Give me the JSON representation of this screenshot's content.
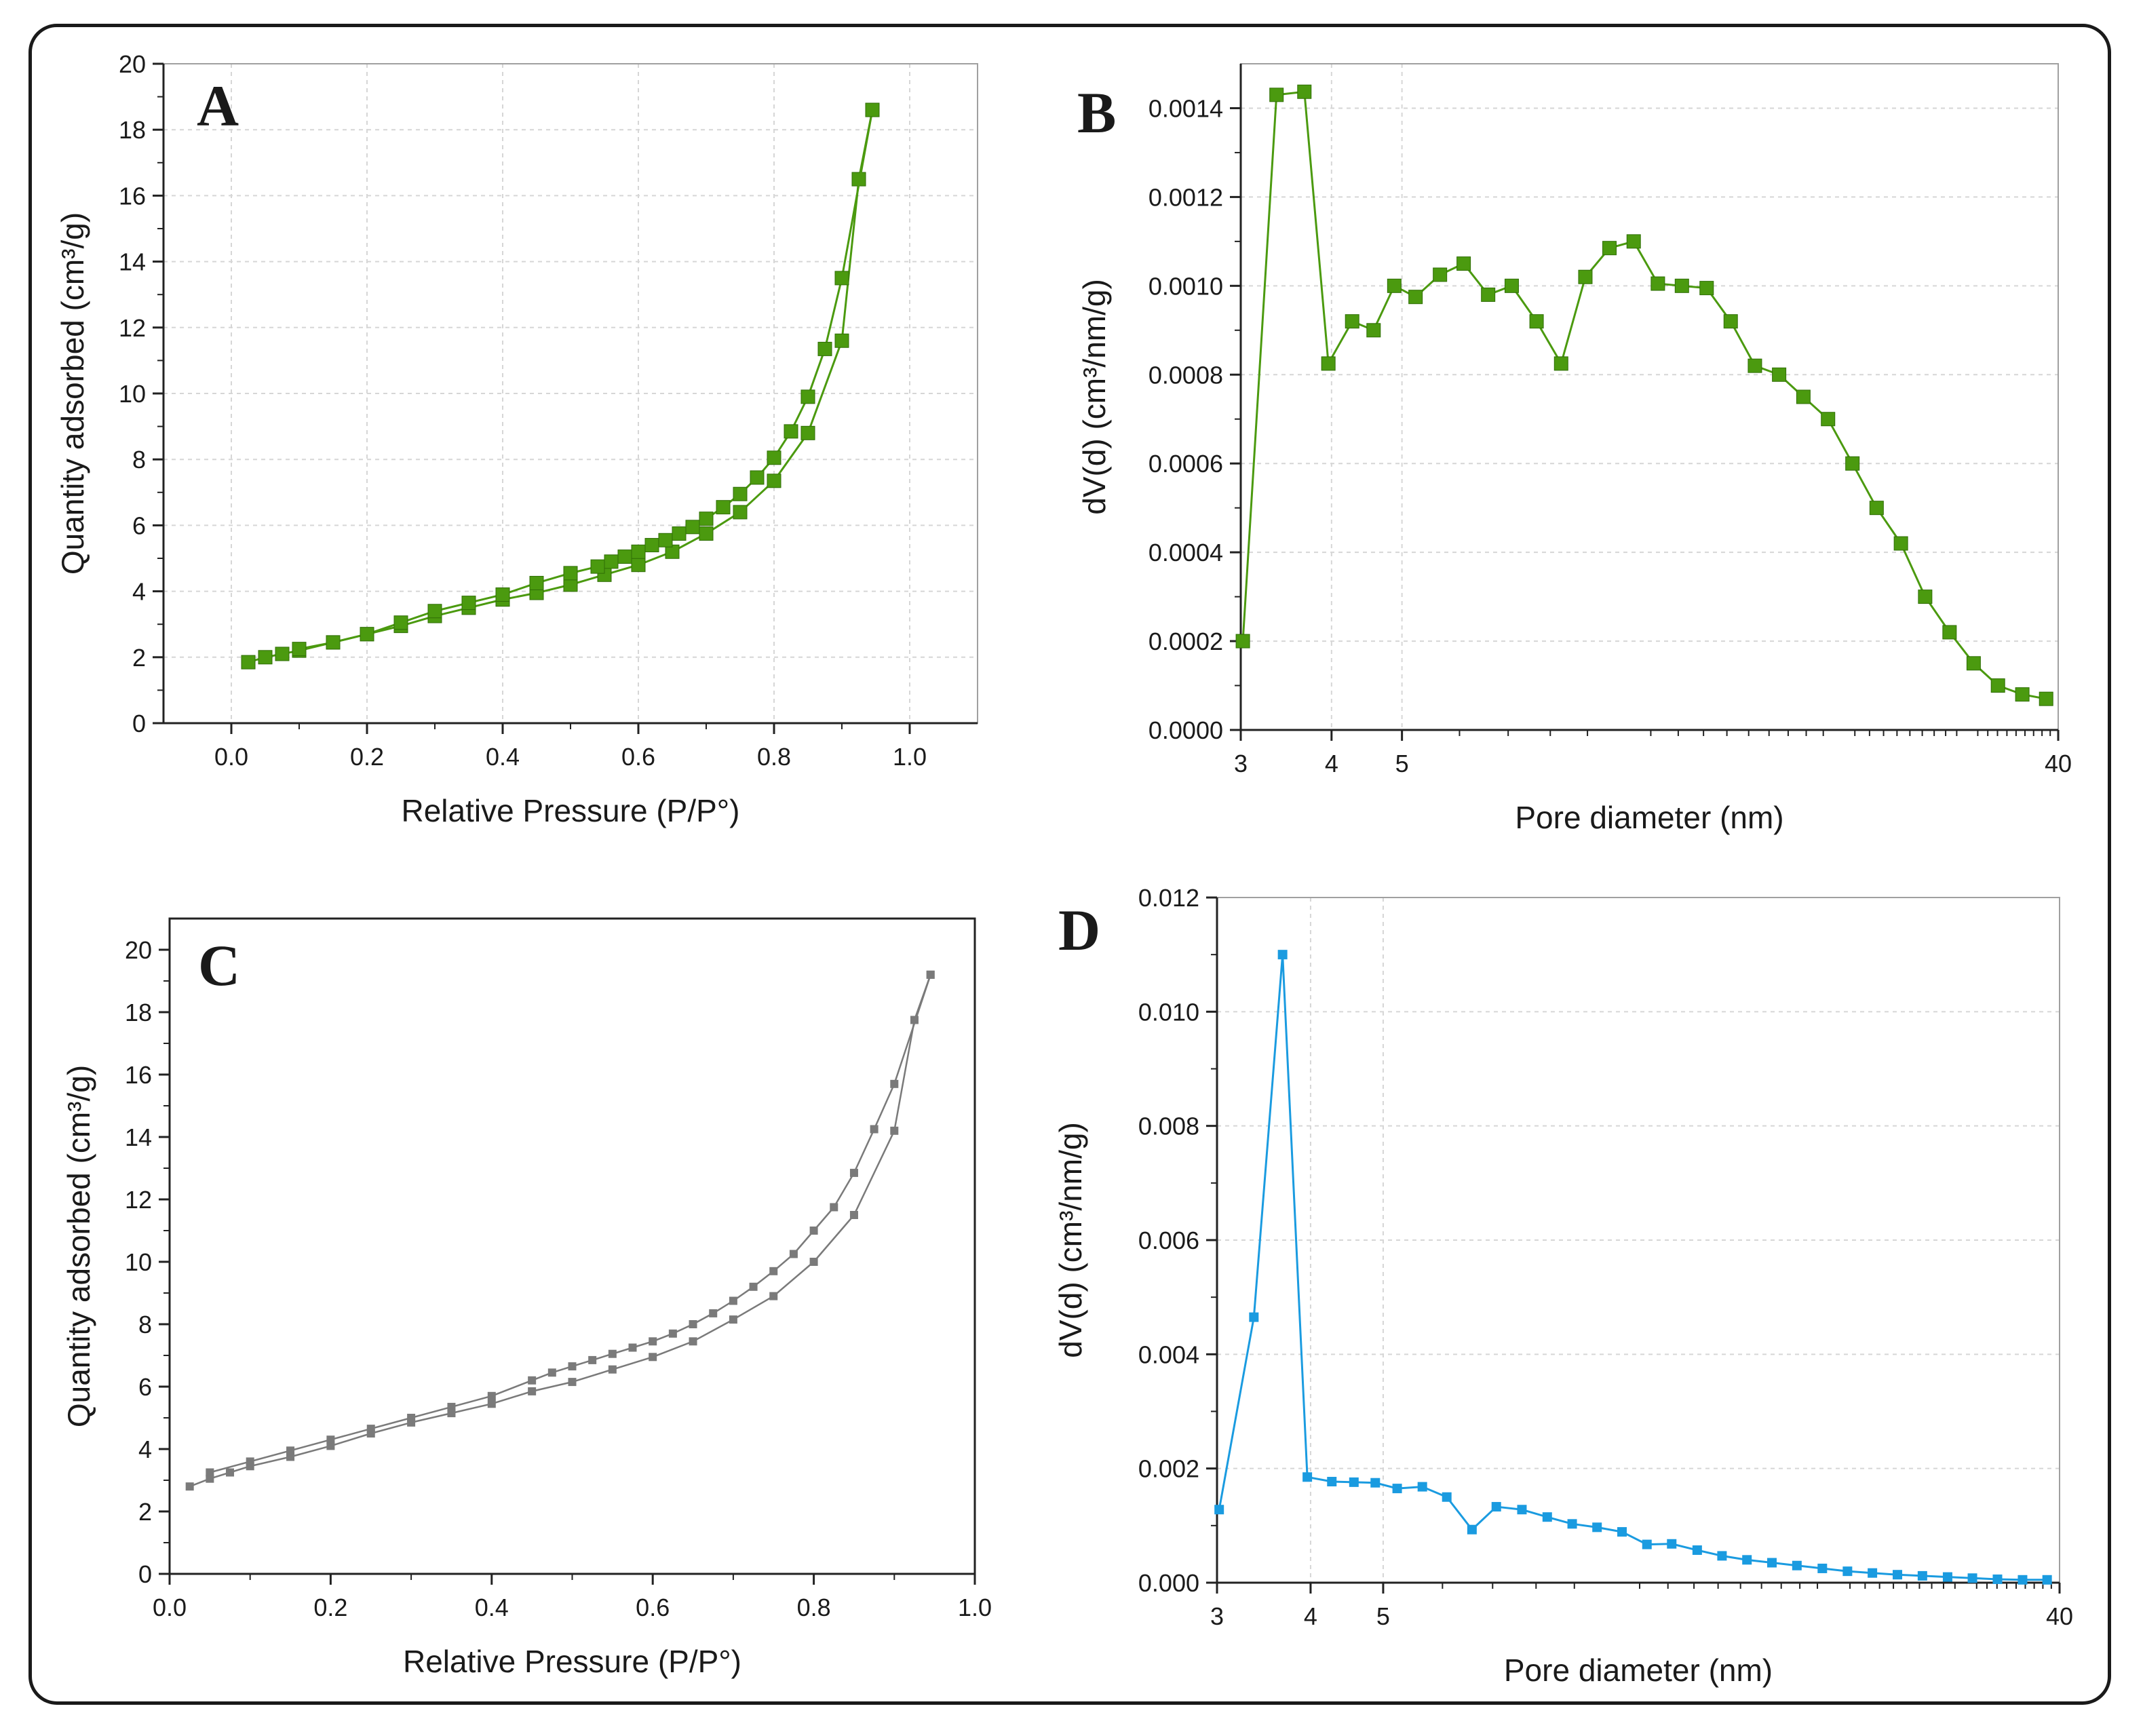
{
  "figure": {
    "border": "rounded"
  },
  "chart_data": [
    {
      "panel": "A",
      "type": "line",
      "xlabel": "Relative Pressure (P/P°)",
      "ylabel": "Quantity adsorbed (cm³/g)",
      "xscale": "linear",
      "xlim": [
        -0.1,
        1.1
      ],
      "ylim": [
        0,
        20
      ],
      "xticks": [
        0.0,
        0.2,
        0.4,
        0.6,
        0.8,
        1.0
      ],
      "xtick_labels": [
        "0.0",
        "0.2",
        "0.4",
        "0.6",
        "0.8",
        "1.0"
      ],
      "yticks": [
        0,
        2,
        4,
        6,
        8,
        10,
        12,
        14,
        16,
        18,
        20
      ],
      "ytick_labels": [
        "0",
        "2",
        "4",
        "6",
        "8",
        "10",
        "12",
        "14",
        "16",
        "18",
        "20"
      ],
      "grid": true,
      "color": "#4b9a0f",
      "marker": "square",
      "series": [
        {
          "x": [
            0.025,
            0.05,
            0.075,
            0.1,
            0.15,
            0.2,
            0.25,
            0.3,
            0.35,
            0.4,
            0.45,
            0.5,
            0.55,
            0.6,
            0.65,
            0.7,
            0.75,
            0.8,
            0.85,
            0.9,
            0.925,
            0.945
          ],
          "y": [
            1.85,
            2.0,
            2.1,
            2.2,
            2.45,
            2.7,
            2.95,
            3.25,
            3.5,
            3.75,
            3.95,
            4.2,
            4.5,
            4.8,
            5.2,
            5.75,
            6.4,
            7.35,
            8.8,
            11.6,
            16.5,
            18.6
          ]
        },
        {
          "x": [
            0.945,
            0.9,
            0.875,
            0.85,
            0.825,
            0.8,
            0.775,
            0.75,
            0.725,
            0.7,
            0.68,
            0.66,
            0.64,
            0.62,
            0.6,
            0.58,
            0.56,
            0.54,
            0.5,
            0.45,
            0.4,
            0.35,
            0.3,
            0.25,
            0.2,
            0.15,
            0.1
          ],
          "y": [
            18.6,
            13.5,
            11.35,
            9.9,
            8.85,
            8.05,
            7.45,
            6.95,
            6.55,
            6.2,
            5.95,
            5.75,
            5.55,
            5.4,
            5.2,
            5.05,
            4.9,
            4.75,
            4.55,
            4.25,
            3.9,
            3.65,
            3.4,
            3.05,
            2.7,
            2.45,
            2.25
          ]
        }
      ]
    },
    {
      "panel": "B",
      "type": "line",
      "xlabel": "Pore diameter (nm)",
      "ylabel": "dV(d) (cm³/nm/g)",
      "xscale": "log",
      "xlim": [
        3,
        40
      ],
      "ylim": [
        0,
        0.0015
      ],
      "xticks": [
        3,
        4,
        5,
        40
      ],
      "xtick_labels": [
        "3",
        "4",
        "5",
        "40"
      ],
      "yticks": [
        0,
        0.0002,
        0.0004,
        0.0006,
        0.0008,
        0.001,
        0.0012,
        0.0014
      ],
      "ytick_labels": [
        "0.0000",
        "0.0002",
        "0.0004",
        "0.0006",
        "0.0008",
        "0.0010",
        "0.0012",
        "0.0014"
      ],
      "grid": true,
      "color": "#4b9a0f",
      "marker": "square",
      "series": [
        {
          "x": [
            3.02,
            3.36,
            3.67,
            3.96,
            4.27,
            4.57,
            4.88,
            5.22,
            5.64,
            6.08,
            6.57,
            7.08,
            7.66,
            8.28,
            8.94,
            9.65,
            10.42,
            11.25,
            12.14,
            13.13,
            14.17,
            15.3,
            16.52,
            17.84,
            19.29,
            20.84,
            22.5,
            24.3,
            26.24,
            28.35,
            30.6,
            33.05,
            35.7,
            38.5
          ],
          "y": [
            0.0002,
            0.00143,
            0.001437,
            0.000825,
            0.00092,
            0.0009,
            0.001,
            0.000975,
            0.001025,
            0.00105,
            0.00098,
            0.001,
            0.00092,
            0.000825,
            0.00102,
            0.001085,
            0.0011,
            0.001005,
            0.001,
            0.000995,
            0.00092,
            0.00082,
            0.0008,
            0.00075,
            0.0007,
            0.0006,
            0.0005,
            0.00042,
            0.0003,
            0.00022,
            0.00015,
            0.0001,
            8e-05,
            7e-05
          ]
        }
      ]
    },
    {
      "panel": "C",
      "type": "line",
      "xlabel": "Relative Pressure (P/P°)",
      "ylabel": "Quantity adsorbed (cm³/g)",
      "xscale": "linear",
      "xlim": [
        0,
        1
      ],
      "ylim": [
        0,
        21
      ],
      "xticks": [
        0.0,
        0.2,
        0.4,
        0.6,
        0.8,
        1.0
      ],
      "xtick_labels": [
        "0.0",
        "0.2",
        "0.4",
        "0.6",
        "0.8",
        "1.0"
      ],
      "yticks": [
        0,
        2,
        4,
        6,
        8,
        10,
        12,
        14,
        16,
        18,
        20
      ],
      "ytick_labels": [
        "0",
        "2",
        "4",
        "6",
        "8",
        "10",
        "12",
        "14",
        "16",
        "18",
        "20"
      ],
      "grid": false,
      "color": "#7a7a7a",
      "marker": "square",
      "series": [
        {
          "x": [
            0.025,
            0.05,
            0.075,
            0.1,
            0.15,
            0.2,
            0.25,
            0.3,
            0.35,
            0.4,
            0.45,
            0.5,
            0.55,
            0.6,
            0.65,
            0.7,
            0.75,
            0.8,
            0.85,
            0.9,
            0.925,
            0.945
          ],
          "y": [
            2.8,
            3.05,
            3.25,
            3.45,
            3.75,
            4.1,
            4.5,
            4.85,
            5.15,
            5.45,
            5.85,
            6.15,
            6.55,
            6.95,
            7.45,
            8.15,
            8.9,
            10.0,
            11.5,
            14.2,
            17.75,
            19.2
          ]
        },
        {
          "x": [
            0.945,
            0.9,
            0.875,
            0.85,
            0.825,
            0.8,
            0.775,
            0.75,
            0.725,
            0.7,
            0.675,
            0.65,
            0.625,
            0.6,
            0.575,
            0.55,
            0.525,
            0.5,
            0.475,
            0.45,
            0.4,
            0.35,
            0.3,
            0.25,
            0.2,
            0.15,
            0.1,
            0.05
          ],
          "y": [
            19.2,
            15.7,
            14.25,
            12.85,
            11.75,
            11.0,
            10.25,
            9.7,
            9.2,
            8.75,
            8.35,
            8.0,
            7.7,
            7.45,
            7.25,
            7.05,
            6.85,
            6.65,
            6.45,
            6.2,
            5.7,
            5.35,
            5.0,
            4.65,
            4.3,
            3.95,
            3.6,
            3.25
          ]
        }
      ]
    },
    {
      "panel": "D",
      "type": "line",
      "xlabel": "Pore diameter (nm)",
      "ylabel": "dV(d) (cm³/nm/g)",
      "xscale": "log",
      "xlim": [
        3,
        40
      ],
      "ylim": [
        0,
        0.012
      ],
      "xticks": [
        3,
        4,
        5,
        40
      ],
      "xtick_labels": [
        "3",
        "4",
        "5",
        "40"
      ],
      "yticks": [
        0,
        0.002,
        0.004,
        0.006,
        0.008,
        0.01,
        0.012
      ],
      "ytick_labels": [
        "0.000",
        "0.002",
        "0.004",
        "0.006",
        "0.008",
        "0.010",
        "0.012"
      ],
      "grid": true,
      "color": "#1a9be0",
      "marker": "square",
      "series": [
        {
          "x": [
            3.02,
            3.36,
            3.67,
            3.96,
            4.27,
            4.57,
            4.88,
            5.22,
            5.64,
            6.08,
            6.57,
            7.08,
            7.66,
            8.28,
            8.94,
            9.65,
            10.42,
            11.25,
            12.14,
            13.13,
            14.17,
            15.3,
            16.52,
            17.84,
            19.29,
            20.84,
            22.5,
            24.3,
            26.24,
            28.35,
            30.6,
            33.05,
            35.7,
            38.5
          ],
          "y": [
            0.00128,
            0.00465,
            0.011,
            0.00185,
            0.00177,
            0.00176,
            0.00175,
            0.00165,
            0.00168,
            0.0015,
            0.00093,
            0.00133,
            0.00128,
            0.00115,
            0.00103,
            0.00097,
            0.00089,
            0.00067,
            0.00068,
            0.00057,
            0.00047,
            0.0004,
            0.00035,
            0.0003,
            0.00025,
            0.0002,
            0.00017,
            0.00014,
            0.00012,
            0.0001,
            8e-05,
            6e-05,
            5e-05,
            5e-05
          ]
        }
      ]
    }
  ]
}
